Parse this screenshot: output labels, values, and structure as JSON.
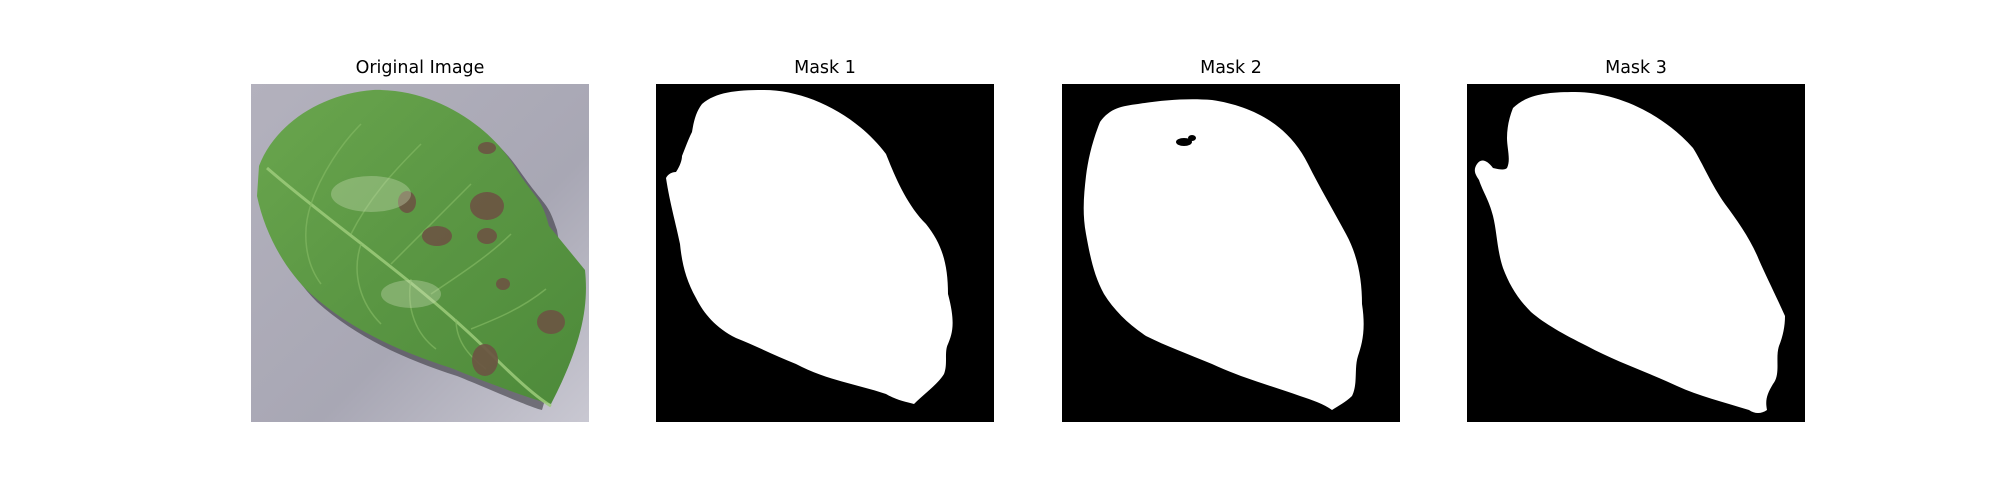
{
  "panels": [
    {
      "title": "Original Image",
      "kind": "photo",
      "subject": "leaf-photo"
    },
    {
      "title": "Mask 1",
      "kind": "mask",
      "foreground": "#ffffff",
      "background": "#000000"
    },
    {
      "title": "Mask 2",
      "kind": "mask",
      "foreground": "#ffffff",
      "background": "#000000"
    },
    {
      "title": "Mask 3",
      "kind": "mask",
      "foreground": "#ffffff",
      "background": "#000000"
    }
  ],
  "colors": {
    "photo_background": "#a9a8b3",
    "leaf_green": "#5e9a45",
    "leaf_dark": "#3f7030",
    "lesion_brown": "#6e5a46",
    "mask_white": "#ffffff",
    "mask_black": "#000000"
  }
}
